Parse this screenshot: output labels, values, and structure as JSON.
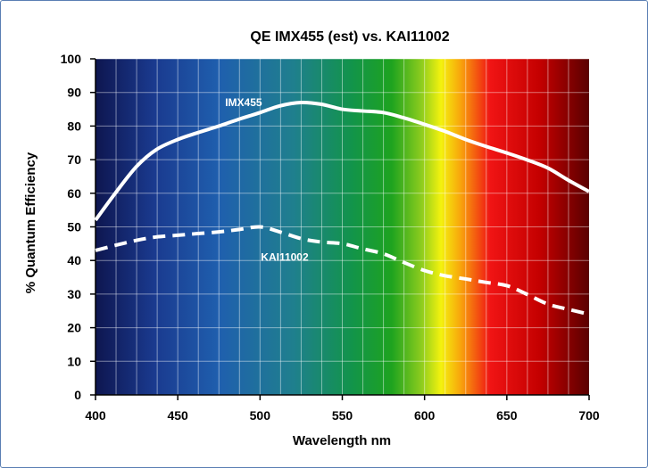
{
  "chart_data": {
    "type": "line",
    "title": "QE IMX455 (est) vs. KAI11002",
    "xlabel": "Wavelength nm",
    "ylabel": "% Quantum Efficiency",
    "xlim": [
      400,
      700
    ],
    "ylim": [
      0,
      100
    ],
    "xticks": [
      400,
      450,
      500,
      550,
      600,
      650,
      700
    ],
    "yticks": [
      0,
      10,
      20,
      30,
      40,
      50,
      60,
      70,
      80,
      90,
      100
    ],
    "grid": true,
    "background": "visible spectrum gradient (violet/blue to red)",
    "series": [
      {
        "name": "IMX455",
        "style": "solid",
        "color": "#ffffff",
        "x": [
          400,
          412,
          425,
          437,
          450,
          462,
          475,
          487,
          500,
          512,
          525,
          537,
          550,
          562,
          575,
          587,
          600,
          612,
          625,
          637,
          650,
          662,
          675,
          687,
          700
        ],
        "y": [
          52,
          60,
          68,
          73,
          76,
          78,
          80,
          82,
          84,
          86,
          87,
          86.5,
          85,
          84.5,
          84,
          82.5,
          80.5,
          78.5,
          76,
          74,
          72,
          70,
          67.5,
          64,
          60.5
        ]
      },
      {
        "name": "KAI11002",
        "style": "dashed",
        "color": "#ffffff",
        "x": [
          400,
          412,
          425,
          437,
          450,
          462,
          475,
          487,
          500,
          512,
          525,
          537,
          550,
          562,
          575,
          587,
          600,
          612,
          625,
          637,
          650,
          662,
          675,
          687,
          700
        ],
        "y": [
          43,
          44.5,
          46,
          47,
          47.5,
          48,
          48.5,
          49.2,
          50,
          48.5,
          46.5,
          45.5,
          45,
          43.5,
          42,
          39.5,
          37,
          35.5,
          34.5,
          33.5,
          32.5,
          30,
          27,
          25.5,
          24
        ]
      }
    ],
    "annotations": [
      {
        "text": "IMX455",
        "x": 490,
        "y": 87
      },
      {
        "text": "KAI11002",
        "x": 515,
        "y": 41
      }
    ]
  }
}
